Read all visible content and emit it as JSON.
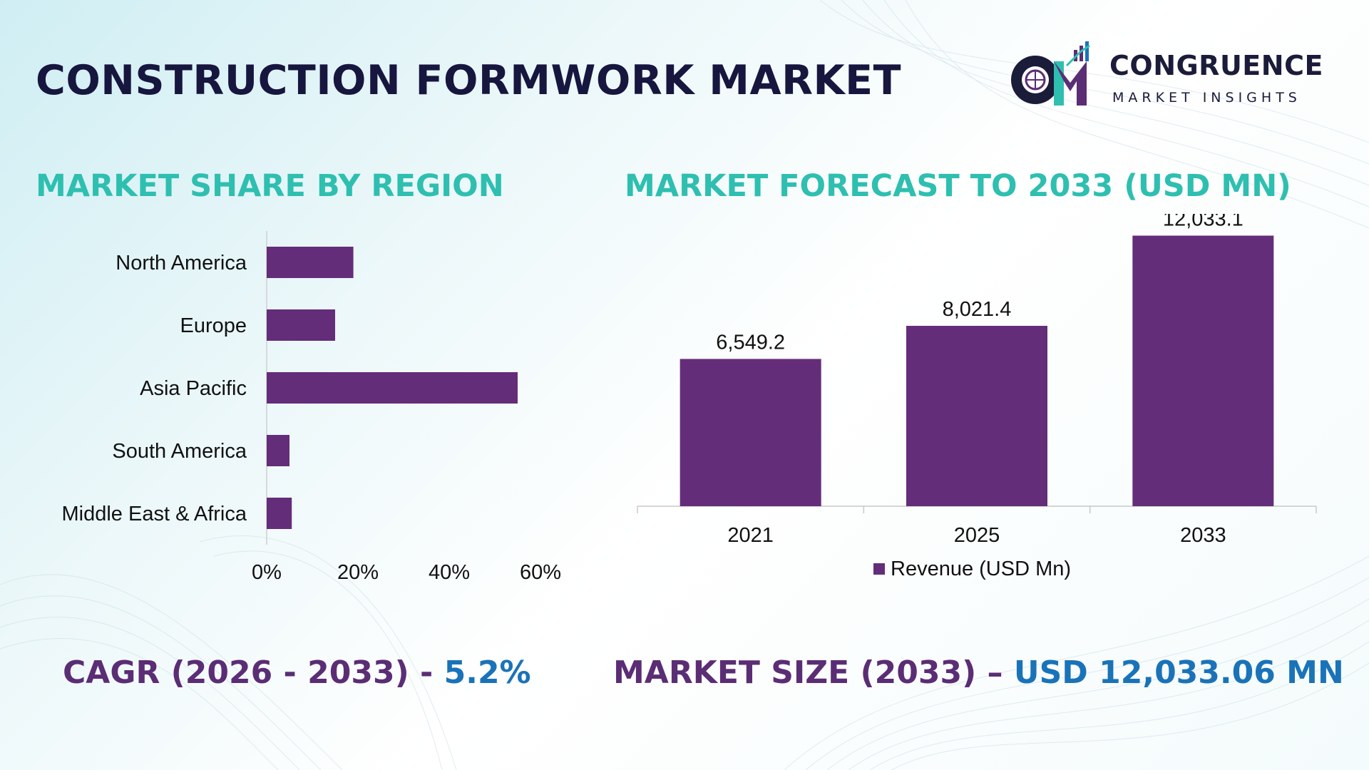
{
  "header": {
    "title": "CONSTRUCTION FORMWORK MARKET",
    "logo_word": "CONGRUENCE",
    "logo_sub": "MARKET INSIGHTS"
  },
  "sections": {
    "region_title": "MARKET SHARE BY REGION",
    "forecast_title": "MARKET FORECAST TO 2033 (USD MN)"
  },
  "footer": {
    "cagr_label": "CAGR (2026 - 2033) - ",
    "cagr_value": "5.2%",
    "size_label": "MARKET SIZE (2033) – ",
    "size_value": "USD 12,033.06 MN"
  },
  "colors": {
    "bar": "#642d79",
    "title_teal": "#2ebfb0",
    "footer_purple": "#5b2d75",
    "footer_blue": "#1a73b8"
  },
  "chart_data": [
    {
      "type": "bar",
      "orientation": "horizontal",
      "title": "MARKET SHARE BY REGION",
      "categories": [
        "North America",
        "Europe",
        "Asia Pacific",
        "South America",
        "Middle East & Africa"
      ],
      "values": [
        19,
        15,
        55,
        5,
        5.5
      ],
      "x_ticks": [
        "0%",
        "20%",
        "40%",
        "60%"
      ],
      "xlim": [
        0,
        60
      ],
      "unit": "%",
      "grid": false
    },
    {
      "type": "bar",
      "orientation": "vertical",
      "title": "MARKET FORECAST TO 2033 (USD MN)",
      "categories": [
        "2021",
        "2025",
        "2033"
      ],
      "series": [
        {
          "name": "Revenue (USD Mn)",
          "values": [
            6549.2,
            8021.4,
            12033.1
          ],
          "labels": [
            "6,549.2",
            "8,021.4",
            "12,033.1"
          ]
        }
      ],
      "ylim": [
        0,
        13000
      ],
      "legend": "bottom",
      "grid": false
    }
  ]
}
